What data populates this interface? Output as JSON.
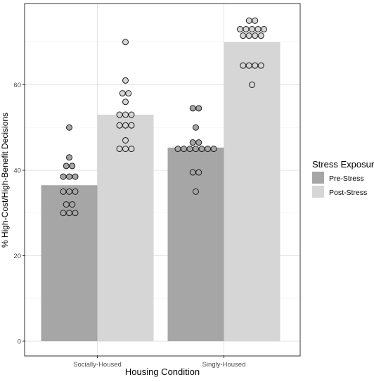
{
  "chart_data": {
    "type": "bar",
    "categories": [
      "Socially-Housed",
      "Singly-Housed"
    ],
    "series": [
      {
        "name": "Pre-Stress",
        "color": "#a6a6a6",
        "values": [
          36.5,
          45.3
        ],
        "points": [
          [
            50,
            43,
            41,
            41,
            38.5,
            38.5,
            38.5,
            35,
            35,
            35,
            32,
            32,
            30,
            30,
            30
          ],
          [
            54.5,
            54.5,
            50,
            46.5,
            46.5,
            45,
            45,
            45,
            45,
            45,
            45,
            45,
            39.5,
            39.5,
            35
          ]
        ]
      },
      {
        "name": "Post-Stress",
        "color": "#d6d6d6",
        "values": [
          53,
          70
        ],
        "points": [
          [
            70,
            61,
            58,
            58,
            56,
            53,
            53,
            53,
            50.5,
            50.5,
            50.5,
            47,
            45,
            45,
            45
          ],
          [
            75,
            75,
            73,
            73,
            73,
            73,
            73,
            71.5,
            71.5,
            71.5,
            71.5,
            64.5,
            64.5,
            64.5,
            64.5,
            60
          ]
        ]
      }
    ],
    "xlabel": "Housing Condition",
    "ylabel": "% High-Cost/High-Benefit Decisions",
    "ylim": [
      0,
      78
    ],
    "yticks": [
      "0",
      "20",
      "40",
      "60"
    ],
    "grid": true,
    "legend": {
      "title": "Stress Exposure",
      "position": "right",
      "items": [
        "Pre-Stress",
        "Post-Stress"
      ]
    }
  }
}
